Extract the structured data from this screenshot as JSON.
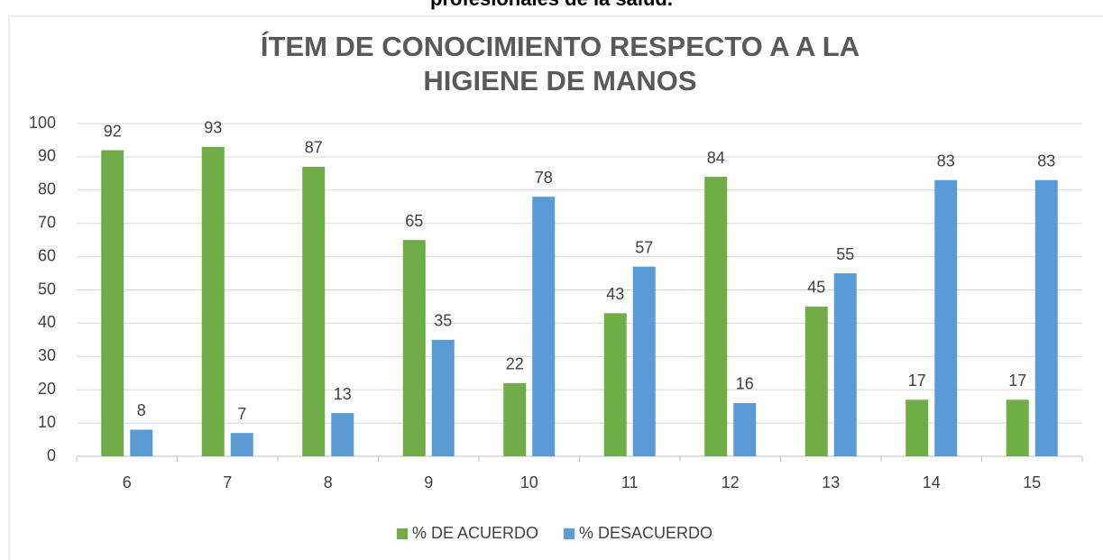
{
  "caption": "profesionales de la salud.",
  "chart_data": {
    "type": "bar",
    "title": "ÍTEM DE CONOCIMIENTO RESPECTO A A LA HIGIENE DE MANOS",
    "categories": [
      "6",
      "7",
      "8",
      "9",
      "10",
      "11",
      "12",
      "13",
      "14",
      "15"
    ],
    "series": [
      {
        "name": "% DE ACUERDO",
        "color": "#70ad47",
        "values": [
          92,
          93,
          87,
          65,
          22,
          43,
          84,
          45,
          17,
          17
        ]
      },
      {
        "name": "% DESACUERDO",
        "color": "#5b9bd5",
        "values": [
          8,
          7,
          13,
          35,
          78,
          57,
          16,
          55,
          83,
          83
        ]
      }
    ],
    "ylim": [
      0,
      100
    ],
    "yticks": [
      0,
      10,
      20,
      30,
      40,
      50,
      60,
      70,
      80,
      90,
      100
    ],
    "grid": true,
    "legend": "bottom",
    "data_labels": true
  }
}
